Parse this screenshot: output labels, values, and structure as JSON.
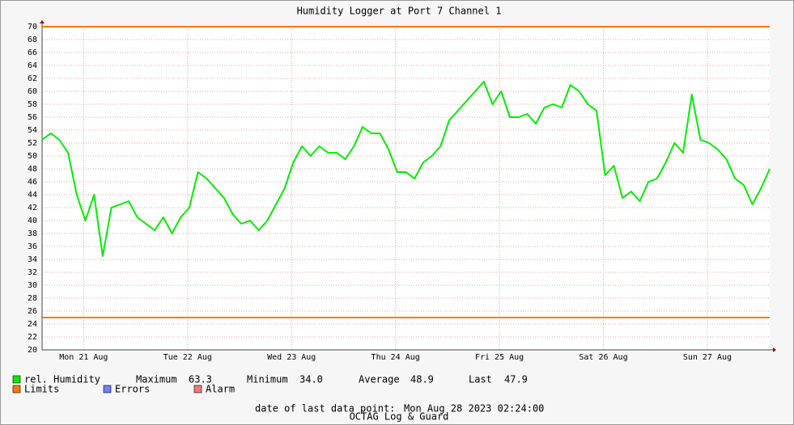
{
  "chart_data": {
    "type": "line",
    "title": "Humidity Logger at Port 7 Channel 1",
    "xlim": [
      0,
      168
    ],
    "xticks": [
      {
        "value": 9.6,
        "label": "Mon 21 Aug"
      },
      {
        "value": 33.6,
        "label": "Tue 22 Aug"
      },
      {
        "value": 57.6,
        "label": "Wed 23 Aug"
      },
      {
        "value": 81.6,
        "label": "Thu 24 Aug"
      },
      {
        "value": 105.6,
        "label": "Fri 25 Aug"
      },
      {
        "value": 129.6,
        "label": "Sat 26 Aug"
      },
      {
        "value": 153.6,
        "label": "Sun 27 Aug"
      }
    ],
    "ylim": [
      20,
      70
    ],
    "yticks": [
      20,
      22,
      24,
      26,
      28,
      30,
      32,
      34,
      36,
      38,
      40,
      42,
      44,
      46,
      48,
      50,
      52,
      54,
      56,
      58,
      60,
      62,
      64,
      66,
      68,
      70
    ],
    "grid": true,
    "x": [
      0,
      2,
      4,
      6,
      8,
      10,
      12,
      14,
      16,
      18,
      20,
      22,
      24,
      26,
      28,
      30,
      32,
      34,
      36,
      38,
      40,
      42,
      44,
      46,
      48,
      50,
      52,
      54,
      56,
      58,
      60,
      62,
      64,
      66,
      68,
      70,
      72,
      74,
      76,
      78,
      80,
      82,
      84,
      86,
      88,
      90,
      92,
      94,
      96,
      98,
      100,
      102,
      104,
      106,
      108,
      110,
      112,
      114,
      116,
      118,
      120,
      122,
      124,
      126,
      128,
      130,
      132,
      134,
      136,
      138,
      140,
      142,
      144,
      146,
      148,
      150,
      152,
      154,
      156,
      158,
      160,
      162,
      164,
      166,
      168
    ],
    "series": [
      {
        "name": "rel. Humidity",
        "color": "#00ee00",
        "values": [
          52.5,
          53.5,
          52.5,
          50.5,
          44,
          40,
          44,
          34.5,
          42,
          42.5,
          43,
          40.5,
          39.5,
          38.5,
          40.5,
          38,
          40.5,
          42,
          47.5,
          46.5,
          45,
          43.5,
          41,
          39.5,
          40,
          38.5,
          40,
          42.5,
          45,
          49,
          51.5,
          50,
          51.5,
          50.5,
          50.5,
          49.5,
          51.5,
          54.5,
          53.5,
          53.5,
          51,
          47.5,
          47.5,
          46.5,
          49,
          50,
          51.5,
          55.5,
          57,
          58.5,
          60,
          61.5,
          58,
          60,
          56,
          56,
          56.5,
          55,
          57.5,
          58,
          57.5,
          61,
          60,
          58,
          57,
          47,
          48.5,
          43.5,
          44.5,
          43,
          46,
          46.5,
          49,
          52,
          50.5,
          59.5,
          52.5,
          52,
          51,
          49.5,
          46.5,
          45.5,
          42.5,
          45,
          48
        ]
      }
    ],
    "limits": {
      "name": "Limits",
      "color": "#ff7700",
      "values": [
        70,
        25
      ]
    },
    "legend_extra": [
      {
        "name": "Errors",
        "color": "#7080ff"
      },
      {
        "name": "Alarm",
        "color": "#f07878"
      }
    ],
    "stats": [
      {
        "label": "Maximum",
        "value": 63.3
      },
      {
        "label": "Minimum",
        "value": {
          "value": 34,
          "label": "34.0"
        }
      },
      {
        "label": "Average",
        "value": 48.9
      },
      {
        "label": "Last",
        "value": 47.9
      }
    ],
    "footer": {
      "label": "date of last data point:",
      "date": "Mon Aug 28 2023 02:24:00",
      "watermark": "OCTAG Log & Guard"
    }
  }
}
